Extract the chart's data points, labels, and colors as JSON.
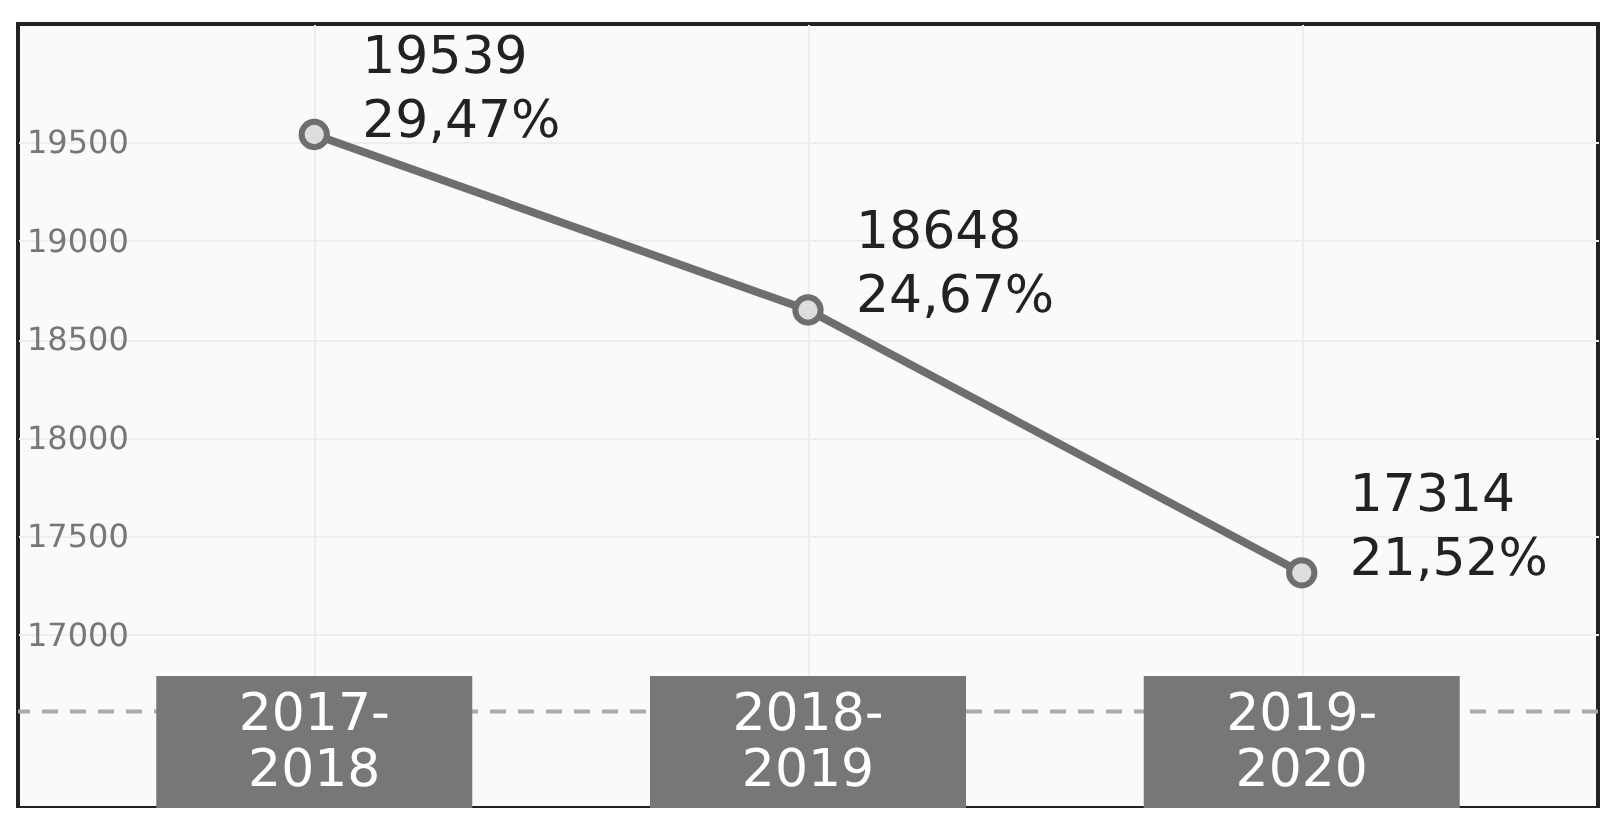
{
  "chart_data": {
    "type": "line",
    "categories": [
      "2017-2018",
      "2018-2019",
      "2019-2020"
    ],
    "series": [
      {
        "color": "#6e6e6e",
        "values": [
          19539,
          18648,
          17314
        ]
      }
    ],
    "value_labels": [
      "19539\n29,47%",
      "18648\n24,67%",
      "17314\n21,52%"
    ],
    "ylim": [
      16120,
      20100
    ],
    "yticks": [
      17000,
      17500,
      18000,
      18500,
      19000,
      19500
    ],
    "grid": true,
    "marker": "circle",
    "line_style": "solid",
    "ref_lines": [
      {
        "axis": "y",
        "value": 16610,
        "color": "#aaaaaa",
        "line_style": "dashed"
      }
    ]
  }
}
